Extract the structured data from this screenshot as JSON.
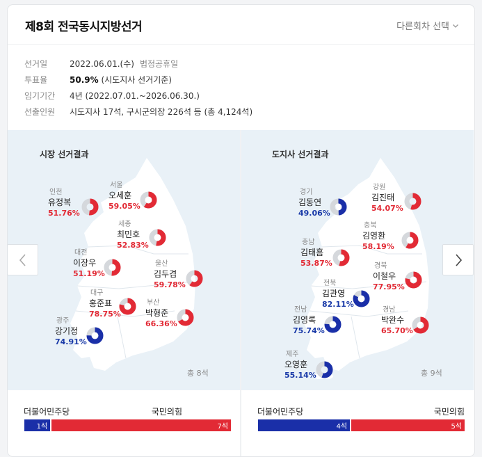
{
  "header": {
    "title": "제8회 전국동시지방선거",
    "select_label": "다른회차 선택"
  },
  "info": [
    {
      "label": "선거일",
      "value": "2022.06.01.(수)",
      "extra": "법정공휴일"
    },
    {
      "label": "투표율",
      "value_bold": "50.9%",
      "value": "(시도지사 선거기준)"
    },
    {
      "label": "임기기간",
      "value": "4년 (2022.07.01.~2026.06.30.)"
    },
    {
      "label": "선출인원",
      "value": "시도지사 17석, 구시군의장 226석 등 (총 4,124석)"
    }
  ],
  "colors": {
    "red": "#e22a35",
    "blue": "#1a2fa8",
    "grey": "#d5d8dc"
  },
  "mayor": {
    "title": "시장 선거결과",
    "total": "총 8석",
    "candidates": [
      {
        "region": "인천",
        "name": "유정복",
        "pct": "51.76%",
        "value": 51.76,
        "party": "red"
      },
      {
        "region": "서울",
        "name": "오세훈",
        "pct": "59.05%",
        "value": 59.05,
        "party": "red"
      },
      {
        "region": "세종",
        "name": "최민호",
        "pct": "52.83%",
        "value": 52.83,
        "party": "red"
      },
      {
        "region": "대전",
        "name": "이장우",
        "pct": "51.19%",
        "value": 51.19,
        "party": "red"
      },
      {
        "region": "울산",
        "name": "김두겸",
        "pct": "59.78%",
        "value": 59.78,
        "party": "red"
      },
      {
        "region": "대구",
        "name": "홍준표",
        "pct": "78.75%",
        "value": 78.75,
        "party": "red"
      },
      {
        "region": "부산",
        "name": "박형준",
        "pct": "66.36%",
        "value": 66.36,
        "party": "red"
      },
      {
        "region": "광주",
        "name": "강기정",
        "pct": "74.91%",
        "value": 74.91,
        "party": "blue"
      }
    ],
    "bar": {
      "left_party": "더불어민주당",
      "right_party": "국민의힘",
      "left_seats": "1석",
      "right_seats": "7석",
      "left_value": 1,
      "right_value": 7
    }
  },
  "governor": {
    "title": "도지사 선거결과",
    "total": "총 9석",
    "candidates": [
      {
        "region": "경기",
        "name": "김동연",
        "pct": "49.06%",
        "value": 49.06,
        "party": "blue"
      },
      {
        "region": "강원",
        "name": "김진태",
        "pct": "54.07%",
        "value": 54.07,
        "party": "red"
      },
      {
        "region": "충북",
        "name": "김영환",
        "pct": "58.19%",
        "value": 58.19,
        "party": "red"
      },
      {
        "region": "충남",
        "name": "김태흠",
        "pct": "53.87%",
        "value": 53.87,
        "party": "red"
      },
      {
        "region": "경북",
        "name": "이철우",
        "pct": "77.95%",
        "value": 77.95,
        "party": "red"
      },
      {
        "region": "전북",
        "name": "김관영",
        "pct": "82.11%",
        "value": 82.11,
        "party": "blue"
      },
      {
        "region": "전남",
        "name": "김영록",
        "pct": "75.74%",
        "value": 75.74,
        "party": "blue"
      },
      {
        "region": "경남",
        "name": "박완수",
        "pct": "65.70%",
        "value": 65.7,
        "party": "red"
      },
      {
        "region": "제주",
        "name": "오영훈",
        "pct": "55.14%",
        "value": 55.14,
        "party": "blue"
      }
    ],
    "bar": {
      "left_party": "더불어민주당",
      "right_party": "국민의힘",
      "left_seats": "4석",
      "right_seats": "5석",
      "left_value": 4,
      "right_value": 5
    }
  },
  "nav": {
    "prev_icon": "chevron-left-icon",
    "next_icon": "chevron-right-icon"
  }
}
